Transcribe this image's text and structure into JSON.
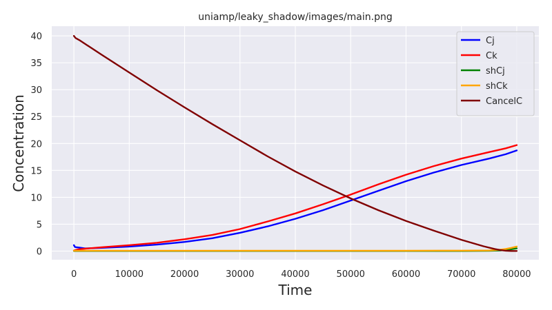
{
  "chart_data": {
    "type": "line",
    "title": "uniamp/leaky_shadow/images/main.png",
    "xlabel": "Time",
    "ylabel": "Concentration",
    "xlim": [
      -4000,
      84000
    ],
    "ylim": [
      -1.6,
      41.8
    ],
    "xticks": [
      0,
      10000,
      20000,
      30000,
      40000,
      50000,
      60000,
      70000,
      80000
    ],
    "xtick_labels": [
      "0",
      "10000",
      "20000",
      "30000",
      "40000",
      "50000",
      "60000",
      "70000",
      "80000"
    ],
    "yticks": [
      0,
      5,
      10,
      15,
      20,
      25,
      30,
      35,
      40
    ],
    "ytick_labels": [
      "0",
      "5",
      "10",
      "15",
      "20",
      "25",
      "30",
      "35",
      "40"
    ],
    "grid": true,
    "legend_position": "top-right",
    "background": "#eaeaf2",
    "series": [
      {
        "name": "Cj",
        "color": "#0000ff",
        "x": [
          0,
          200,
          500,
          1000,
          2000,
          5000,
          10000,
          15000,
          20000,
          25000,
          30000,
          35000,
          40000,
          45000,
          50000,
          55000,
          60000,
          65000,
          70000,
          75000,
          78000,
          80000
        ],
        "y": [
          1.1,
          0.75,
          0.7,
          0.65,
          0.5,
          0.6,
          0.85,
          1.2,
          1.7,
          2.4,
          3.4,
          4.6,
          6.0,
          7.6,
          9.4,
          11.2,
          13.0,
          14.6,
          16.0,
          17.2,
          18.0,
          18.7
        ]
      },
      {
        "name": "Ck",
        "color": "#ff0000",
        "x": [
          0,
          500,
          1000,
          2000,
          5000,
          10000,
          15000,
          20000,
          25000,
          30000,
          35000,
          40000,
          45000,
          50000,
          55000,
          60000,
          65000,
          70000,
          75000,
          78000,
          80000
        ],
        "y": [
          0.1,
          0.25,
          0.35,
          0.45,
          0.7,
          1.1,
          1.55,
          2.2,
          3.0,
          4.1,
          5.5,
          7.0,
          8.7,
          10.5,
          12.4,
          14.2,
          15.8,
          17.2,
          18.4,
          19.1,
          19.7
        ]
      },
      {
        "name": "shCj",
        "color": "#008000",
        "x": [
          0,
          10000,
          20000,
          30000,
          40000,
          50000,
          60000,
          70000,
          75000,
          77000,
          78000,
          79000,
          80000
        ],
        "y": [
          0.02,
          0.02,
          0.02,
          0.02,
          0.02,
          0.02,
          0.02,
          0.03,
          0.05,
          0.12,
          0.22,
          0.35,
          0.5
        ]
      },
      {
        "name": "shCk",
        "color": "#ffa500",
        "x": [
          0,
          10000,
          20000,
          30000,
          40000,
          50000,
          60000,
          70000,
          75000,
          77000,
          78000,
          79000,
          80000
        ],
        "y": [
          0.08,
          0.08,
          0.08,
          0.08,
          0.08,
          0.08,
          0.08,
          0.09,
          0.12,
          0.25,
          0.4,
          0.6,
          0.85
        ]
      },
      {
        "name": "CancelC",
        "color": "#800000",
        "x": [
          0,
          300,
          1000,
          5000,
          10000,
          15000,
          20000,
          25000,
          30000,
          35000,
          40000,
          45000,
          50000,
          55000,
          60000,
          65000,
          70000,
          74000,
          76000,
          77000,
          78000,
          79000,
          80000
        ],
        "y": [
          40.0,
          39.6,
          39.2,
          36.5,
          33.2,
          29.9,
          26.7,
          23.6,
          20.6,
          17.6,
          14.8,
          12.2,
          9.8,
          7.6,
          5.6,
          3.8,
          2.1,
          0.9,
          0.4,
          0.2,
          0.08,
          0.03,
          0.02
        ]
      }
    ]
  }
}
